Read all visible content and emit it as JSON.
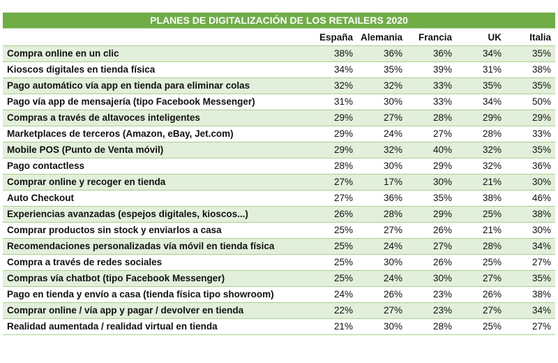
{
  "chart_data": {
    "type": "table",
    "title": "PLANES DE DIGITALIZACIÓN DE LOS RETAILERS 2020",
    "columns": [
      "España",
      "Alemania",
      "Francia",
      "UK",
      "Italia"
    ],
    "rows": [
      {
        "label": "Compra online en un clic",
        "values": [
          "38%",
          "36%",
          "36%",
          "34%",
          "35%"
        ]
      },
      {
        "label": "Kioscos digitales en tienda física",
        "values": [
          "34%",
          "35%",
          "39%",
          "31%",
          "38%"
        ]
      },
      {
        "label": "Pago automático vía app en tienda para eliminar colas",
        "values": [
          "32%",
          "32%",
          "33%",
          "35%",
          "35%"
        ]
      },
      {
        "label": "Pago vía app de mensajería (tipo Facebook Messenger)",
        "values": [
          "31%",
          "30%",
          "33%",
          "34%",
          "50%"
        ]
      },
      {
        "label": "Compras a través de altavoces inteligentes",
        "values": [
          "29%",
          "27%",
          "28%",
          "29%",
          "29%"
        ]
      },
      {
        "label": "Marketplaces de terceros (Amazon, eBay, Jet.com)",
        "values": [
          "29%",
          "24%",
          "27%",
          "28%",
          "33%"
        ]
      },
      {
        "label": "Mobile POS (Punto de Venta móvil)",
        "values": [
          "29%",
          "32%",
          "40%",
          "32%",
          "35%"
        ]
      },
      {
        "label": "Pago contactless",
        "values": [
          "28%",
          "30%",
          "29%",
          "32%",
          "36%"
        ]
      },
      {
        "label": "Comprar online y recoger en tienda",
        "values": [
          "27%",
          "17%",
          "30%",
          "21%",
          "30%"
        ]
      },
      {
        "label": "Auto Checkout",
        "values": [
          "27%",
          "36%",
          "35%",
          "38%",
          "46%"
        ]
      },
      {
        "label": "Experiencias avanzadas (espejos digitales, kioscos...)",
        "values": [
          "26%",
          "28%",
          "29%",
          "25%",
          "38%"
        ]
      },
      {
        "label": "Comprar productos sin stock y enviarlos a casa",
        "values": [
          "25%",
          "27%",
          "26%",
          "21%",
          "30%"
        ]
      },
      {
        "label": "Recomendaciones personalizadas vía móvil en tienda física",
        "values": [
          "25%",
          "24%",
          "27%",
          "28%",
          "34%"
        ]
      },
      {
        "label": "Compra a través de redes sociales",
        "values": [
          "25%",
          "30%",
          "26%",
          "25%",
          "27%"
        ]
      },
      {
        "label": "Compras vía chatbot (tipo Facebook Messenger)",
        "values": [
          "25%",
          "24%",
          "30%",
          "27%",
          "35%"
        ]
      },
      {
        "label": "Pago en tienda y envío a casa (tienda física tipo showroom)",
        "values": [
          "24%",
          "26%",
          "23%",
          "26%",
          "38%"
        ]
      },
      {
        "label": "Comprar online / vía app y pagar / devolver en tienda",
        "values": [
          "22%",
          "27%",
          "23%",
          "27%",
          "34%"
        ]
      },
      {
        "label": "Realidad aumentada / realidad virtual en tienda",
        "values": [
          "21%",
          "30%",
          "28%",
          "25%",
          "27%"
        ]
      }
    ]
  },
  "colors": {
    "header_bg": "#70ad47",
    "header_text": "#ffffff",
    "band_bg": "#e2efda",
    "border": "#a9d08e"
  }
}
